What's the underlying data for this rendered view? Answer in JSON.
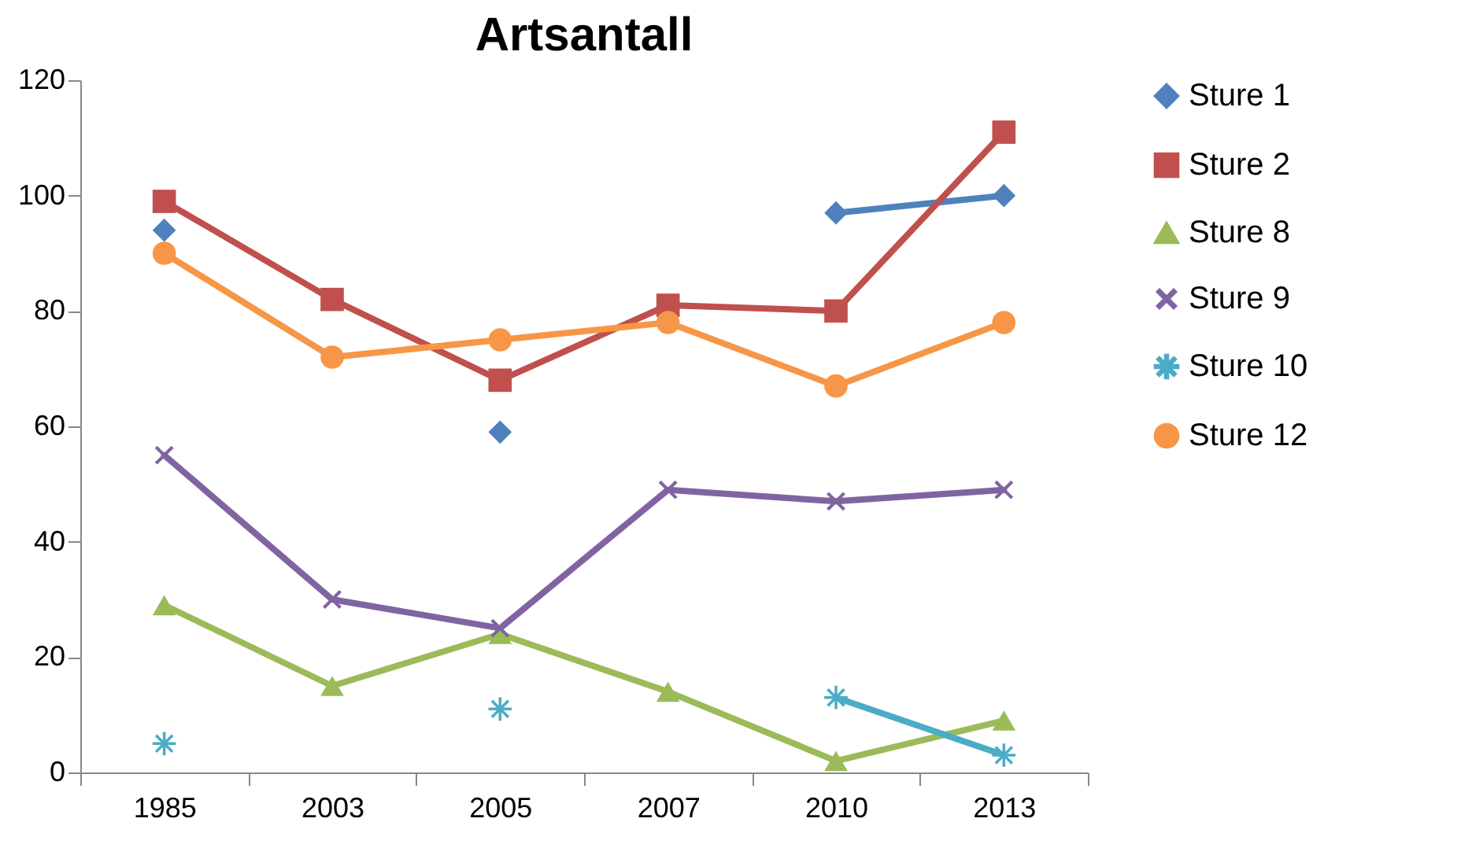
{
  "chart_data": {
    "type": "line",
    "title": "Artsantall",
    "categories": [
      "1985",
      "2003",
      "2005",
      "2007",
      "2010",
      "2013"
    ],
    "ylim": [
      0,
      120
    ],
    "yticks": [
      0,
      20,
      40,
      60,
      80,
      100,
      120
    ],
    "grid": false,
    "legend": "right",
    "line_style": "solid",
    "series": [
      {
        "name": "Sture 1",
        "color": "#4f81bd",
        "marker": "diamond",
        "values": [
          94,
          null,
          59,
          null,
          97,
          100
        ]
      },
      {
        "name": "Sture 2",
        "color": "#c0504d",
        "marker": "square",
        "values": [
          99,
          82,
          68,
          81,
          80,
          111
        ]
      },
      {
        "name": "Sture 8",
        "color": "#9bbb59",
        "marker": "triangle",
        "values": [
          29,
          15,
          24,
          14,
          2,
          9
        ]
      },
      {
        "name": "Sture 9",
        "color": "#8064a2",
        "marker": "cross",
        "values": [
          55,
          30,
          25,
          49,
          47,
          49
        ]
      },
      {
        "name": "Sture 10",
        "color": "#4bacc6",
        "marker": "star",
        "values": [
          5,
          null,
          11,
          null,
          13,
          3
        ]
      },
      {
        "name": "Sture 12",
        "color": "#f79646",
        "marker": "circle",
        "values": [
          90,
          72,
          75,
          78,
          67,
          78
        ]
      }
    ]
  }
}
